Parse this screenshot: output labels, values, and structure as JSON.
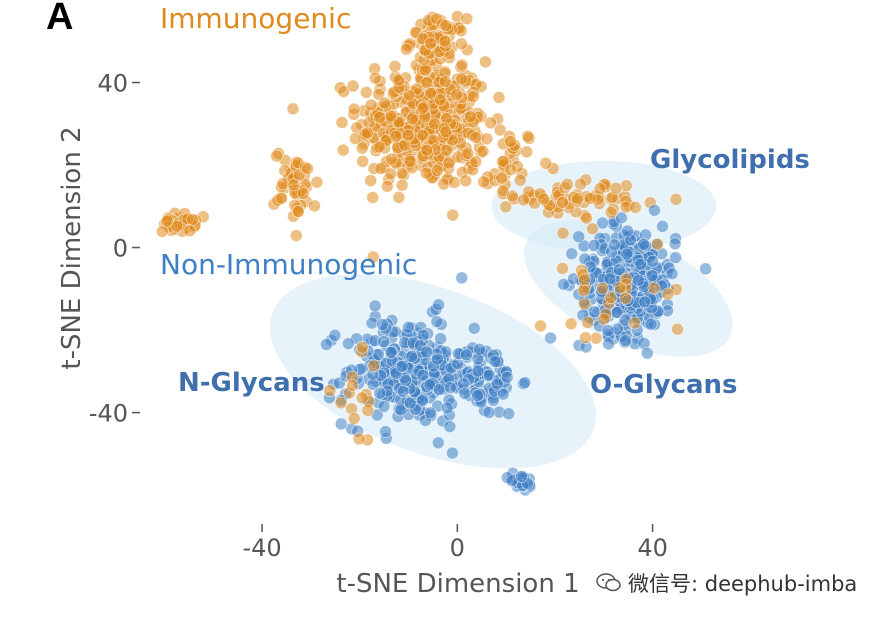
{
  "panel_label": "A",
  "chart_data": {
    "type": "scatter",
    "title": "",
    "xlabel": "t-SNE Dimension 1",
    "ylabel": "t-SNE Dimension 2",
    "xlim": [
      -65,
      62
    ],
    "ylim": [
      -67,
      60
    ],
    "xticks": [
      -40,
      0,
      40
    ],
    "yticks": [
      40,
      0,
      -40
    ],
    "grid": false,
    "groups": [
      {
        "name": "Immunogenic",
        "color": "#e08a1e"
      },
      {
        "name": "Non-Immunogenic",
        "color": "#3f7fc4"
      }
    ],
    "cluster_labels": [
      "Glycolipids",
      "N-Glycans",
      "O-Glycans"
    ],
    "ellipses": [
      {
        "name": "N-Glycans",
        "cx": -5,
        "cy": -30,
        "rx": 35,
        "ry": 20,
        "angle_deg": 20
      },
      {
        "name": "O-Glycans",
        "cx": 35,
        "cy": -10,
        "rx": 23,
        "ry": 13,
        "angle_deg": 25
      },
      {
        "name": "Glycolipids",
        "cx": 30,
        "cy": 10,
        "rx": 23,
        "ry": 11,
        "angle_deg": 0
      }
    ],
    "clusters": [
      {
        "group": "Immunogenic",
        "cx": -7,
        "cy": 30,
        "sx": 12,
        "sy": 14,
        "n": 420
      },
      {
        "group": "Immunogenic",
        "cx": -4,
        "cy": 50,
        "sx": 5,
        "sy": 5,
        "n": 70
      },
      {
        "group": "Immunogenic",
        "cx": -33,
        "cy": 15,
        "sx": 4,
        "sy": 8,
        "n": 45
      },
      {
        "group": "Immunogenic",
        "cx": -57,
        "cy": 6,
        "sx": 3,
        "sy": 2,
        "n": 35
      },
      {
        "group": "Immunogenic",
        "cx": 25,
        "cy": 12,
        "sx": 12,
        "sy": 4,
        "n": 60
      },
      {
        "group": "Immunogenic",
        "cx": 10,
        "cy": 20,
        "sx": 6,
        "sy": 8,
        "n": 40
      },
      {
        "group": "Non-Immunogenic",
        "cx": -10,
        "cy": -30,
        "sx": 12,
        "sy": 12,
        "n": 260
      },
      {
        "group": "Non-Immunogenic",
        "cx": 5,
        "cy": -32,
        "sx": 7,
        "sy": 8,
        "n": 80
      },
      {
        "group": "Non-Immunogenic",
        "cx": 13,
        "cy": -57,
        "sx": 2.5,
        "sy": 2,
        "n": 25
      },
      {
        "group": "Non-Immunogenic",
        "cx": 35,
        "cy": -8,
        "sx": 9,
        "sy": 12,
        "n": 300
      },
      {
        "group": "Immunogenic",
        "cx": 30,
        "cy": -10,
        "sx": 12,
        "sy": 14,
        "n": 30
      },
      {
        "group": "Immunogenic",
        "cx": -20,
        "cy": -38,
        "sx": 5,
        "sy": 10,
        "n": 16
      }
    ]
  },
  "watermark": "微信号: deephub-imba"
}
